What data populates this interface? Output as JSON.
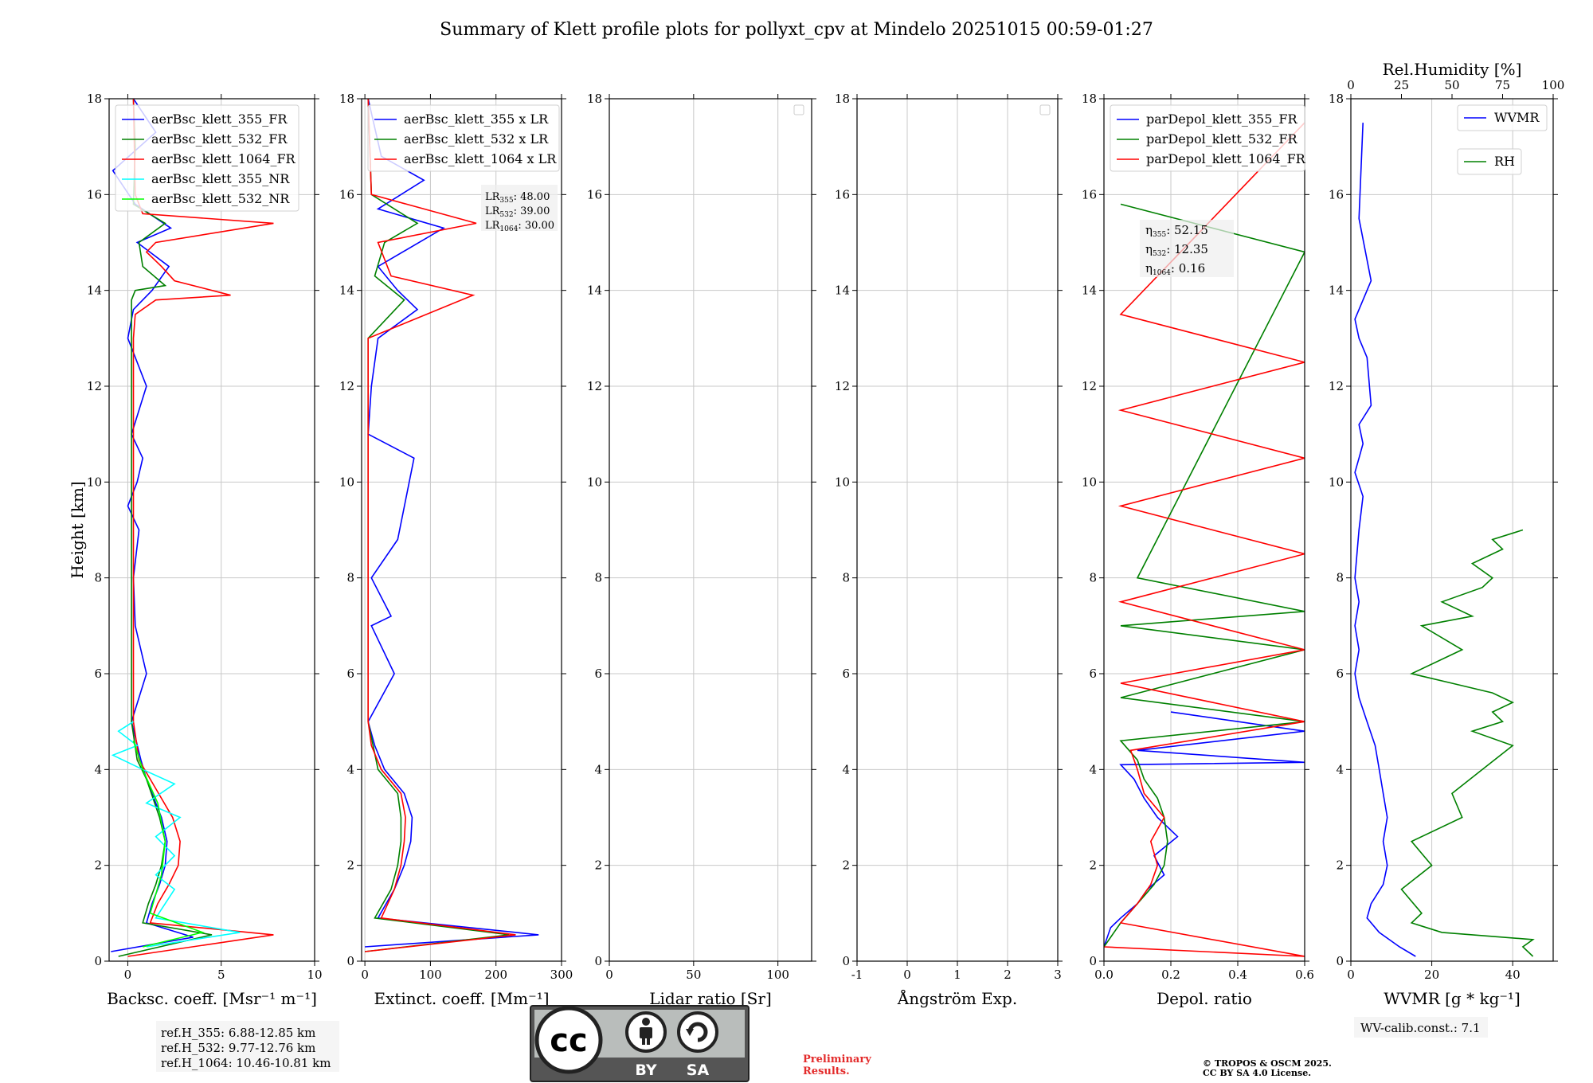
{
  "title": "Summary of Klett profile plots for pollyxt_cpv at Mindelo 20251015 00:59-01:27",
  "chart_data": [
    {
      "type": "line",
      "id": "bsc",
      "xlabel": "Backsc. coeff. [Msr⁻¹ m⁻¹]",
      "ylabel": "Height [km]",
      "xlim": [
        -1,
        10
      ],
      "xticks": [
        0,
        5,
        10
      ],
      "ylim": [
        0,
        18
      ],
      "yticks": [
        0,
        2,
        4,
        6,
        8,
        10,
        12,
        14,
        16,
        18
      ],
      "grid": true,
      "legend_position": "upper-left",
      "series": [
        {
          "name": "aerBsc_klett_355_FR",
          "color": "#0000ff",
          "x": [
            -0.9,
            3.5,
            1.0,
            1.3,
            1.7,
            2.0,
            2.1,
            1.8,
            1.0,
            0.7,
            0.2,
            1.0,
            0.4,
            0.3,
            0.6,
            0.0,
            0.5,
            0.8,
            0.2,
            1.0,
            0.0,
            0.3,
            1.3,
            2.2,
            0.5,
            2.3,
            0.4,
            -0.8,
            1.5,
            0.3
          ],
          "y": [
            0.2,
            0.5,
            0.8,
            1.2,
            1.6,
            2.0,
            2.5,
            3.0,
            3.8,
            4.2,
            5.0,
            6.0,
            7.0,
            8.0,
            9.0,
            9.5,
            10.0,
            10.5,
            11.0,
            12.0,
            13.0,
            13.6,
            14.0,
            14.5,
            15.0,
            15.3,
            15.8,
            16.5,
            17.3,
            18.0
          ]
        },
        {
          "name": "aerBsc_klett_532_FR",
          "color": "#008000",
          "x": [
            -0.5,
            4.5,
            0.8,
            1.1,
            1.5,
            1.8,
            2.0,
            1.7,
            1.0,
            0.5,
            0.2,
            0.2,
            0.2,
            0.2,
            0.2,
            0.2,
            0.2,
            0.2,
            0.2,
            0.2,
            0.2,
            0.4,
            2.0,
            0.8,
            0.6,
            2.0,
            0.3,
            0.4,
            0.3
          ],
          "y": [
            0.1,
            0.55,
            0.8,
            1.2,
            1.6,
            2.0,
            2.5,
            3.0,
            3.8,
            4.2,
            5.0,
            6.0,
            7.0,
            8.0,
            9.0,
            10.0,
            11.0,
            12.0,
            13.0,
            13.6,
            13.8,
            14.0,
            14.1,
            14.5,
            15.0,
            15.4,
            15.8,
            17.0,
            18.0
          ]
        },
        {
          "name": "aerBsc_klett_1064_FR",
          "color": "#ff0000",
          "x": [
            0.0,
            7.8,
            1.2,
            1.6,
            2.2,
            2.7,
            2.8,
            2.4,
            1.2,
            0.6,
            0.3,
            0.3,
            0.3,
            0.3,
            0.3,
            0.3,
            0.3,
            0.3,
            0.3,
            0.4,
            1.5,
            5.5,
            2.5,
            1.8,
            1.0,
            1.5,
            7.8,
            0.8,
            0.4,
            0.3
          ],
          "y": [
            0.1,
            0.55,
            0.8,
            1.2,
            1.6,
            2.0,
            2.5,
            3.0,
            3.8,
            4.2,
            5.0,
            6.0,
            7.0,
            8.0,
            9.0,
            10.0,
            11.0,
            12.0,
            13.0,
            13.5,
            13.8,
            13.9,
            14.2,
            14.5,
            14.8,
            15.0,
            15.4,
            15.6,
            16.0,
            18.0
          ]
        },
        {
          "name": "aerBsc_klett_355_NR",
          "color": "#00ffff",
          "x": [
            1.0,
            6.0,
            1.5,
            2.5,
            1.5,
            2.5,
            1.5,
            2.8,
            1.0,
            2.5,
            0.8,
            -0.8,
            0.5,
            -0.5,
            0.3
          ],
          "y": [
            0.3,
            0.6,
            0.9,
            1.5,
            1.8,
            2.2,
            2.6,
            3.0,
            3.3,
            3.7,
            4.0,
            4.3,
            4.5,
            4.8,
            5.0
          ]
        },
        {
          "name": "aerBsc_klett_532_NR",
          "color": "#00ff00",
          "x": [
            0.8,
            4.0,
            1.2,
            1.8,
            2.0,
            1.6,
            0.8,
            0.3
          ],
          "y": [
            0.3,
            0.6,
            1.0,
            1.8,
            2.5,
            3.3,
            4.0,
            4.6
          ]
        }
      ],
      "annotation": [
        "ref.H_355: 6.88-12.85 km",
        "ref.H_532: 9.77-12.76 km",
        "ref.H_1064: 10.46-10.81 km"
      ]
    },
    {
      "type": "line",
      "id": "ext",
      "xlabel": "Extinct. coeff. [Mm⁻¹]",
      "xlim": [
        -5,
        300
      ],
      "xticks": [
        0,
        100,
        200,
        300
      ],
      "ylim": [
        0,
        18
      ],
      "yticks": [
        0,
        2,
        4,
        6,
        8,
        10,
        12,
        14,
        16,
        18
      ],
      "grid": true,
      "legend_position": "upper-left",
      "series": [
        {
          "name": "aerBsc_klett_355 x LR",
          "color": "#0000ff",
          "x": [
            0,
            265,
            20,
            45,
            60,
            70,
            72,
            60,
            30,
            15,
            5,
            45,
            10,
            40,
            10,
            50,
            75,
            5,
            10,
            20,
            80,
            50,
            20,
            120,
            20,
            90,
            25,
            5
          ],
          "y": [
            0.3,
            0.55,
            0.9,
            1.5,
            2.0,
            2.5,
            3.0,
            3.5,
            4.0,
            4.5,
            5.0,
            6.0,
            7.0,
            7.2,
            8.0,
            8.8,
            10.5,
            11.0,
            12.0,
            13.0,
            13.6,
            14.0,
            14.5,
            15.3,
            15.7,
            16.3,
            16.8,
            18.0
          ]
        },
        {
          "name": "aerBsc_klett_532 x LR",
          "color": "#008000",
          "x": [
            0,
            220,
            15,
            40,
            50,
            55,
            55,
            50,
            20,
            5,
            5,
            5,
            5,
            5,
            5,
            5,
            5,
            60,
            15,
            30,
            80,
            10,
            5
          ],
          "y": [
            0.2,
            0.55,
            0.9,
            1.5,
            2.0,
            2.5,
            3.0,
            3.5,
            4.0,
            5.0,
            6.0,
            7.0,
            8.0,
            9.0,
            10.0,
            11.0,
            13.0,
            13.8,
            14.3,
            15.0,
            15.4,
            16.0,
            18.0
          ]
        },
        {
          "name": "aerBsc_klett_1064 x LR",
          "color": "#ff0000",
          "x": [
            0,
            230,
            25,
            45,
            55,
            60,
            62,
            55,
            25,
            10,
            5,
            5,
            5,
            5,
            5,
            5,
            5,
            5,
            165,
            40,
            20,
            170,
            10,
            5
          ],
          "y": [
            0.2,
            0.55,
            0.9,
            1.5,
            2.0,
            2.5,
            3.0,
            3.5,
            4.0,
            4.5,
            5.0,
            6.0,
            7.0,
            8.0,
            9.0,
            10.0,
            11.0,
            13.0,
            13.9,
            14.3,
            15.0,
            15.4,
            16.0,
            18.0
          ]
        }
      ],
      "annotation": [
        "LR355: 48.00",
        "LR532: 39.00",
        "LR1064: 30.00"
      ]
    },
    {
      "type": "line",
      "id": "lr",
      "xlabel": "Lidar ratio [Sr]",
      "xlim": [
        0,
        120
      ],
      "xticks": [
        0,
        50,
        100
      ],
      "ylim": [
        0,
        18
      ],
      "yticks": [
        0,
        2,
        4,
        6,
        8,
        10,
        12,
        14,
        16,
        18
      ],
      "grid": true,
      "legend_position": "upper-right",
      "series": []
    },
    {
      "type": "line",
      "id": "ae",
      "xlabel": "Ångström Exp.",
      "xlim": [
        -1,
        3
      ],
      "xticks": [
        -1,
        0,
        1,
        2,
        3
      ],
      "ylim": [
        0,
        18
      ],
      "yticks": [
        0,
        2,
        4,
        6,
        8,
        10,
        12,
        14,
        16,
        18
      ],
      "grid": true,
      "legend_position": "upper-right",
      "series": []
    },
    {
      "type": "line",
      "id": "depol",
      "xlabel": "Depol. ratio",
      "xlim": [
        0,
        0.6
      ],
      "xticks": [
        0.0,
        0.2,
        0.4,
        0.6
      ],
      "ylim": [
        0,
        18
      ],
      "yticks": [
        0,
        2,
        4,
        6,
        8,
        10,
        12,
        14,
        16,
        18
      ],
      "grid": true,
      "legend_position": "upper-left",
      "series": [
        {
          "name": "parDepol_klett_355_FR",
          "color": "#0000ff",
          "x": [
            0.0,
            0.02,
            0.05,
            0.1,
            0.13,
            0.18,
            0.15,
            0.22,
            0.16,
            0.12,
            0.09,
            0.05,
            0.6,
            0.1,
            0.6,
            0.2
          ],
          "y": [
            0.3,
            0.7,
            0.9,
            1.2,
            1.5,
            1.8,
            2.2,
            2.6,
            3.0,
            3.4,
            3.8,
            4.1,
            4.15,
            4.4,
            4.8,
            5.2
          ]
        },
        {
          "name": "parDepol_klett_532_FR",
          "color": "#008000",
          "x": [
            0.0,
            0.05,
            0.1,
            0.15,
            0.18,
            0.19,
            0.18,
            0.16,
            0.12,
            0.1,
            0.05,
            0.6,
            0.05,
            0.6,
            0.05,
            0.6,
            0.1,
            0.6,
            0.05
          ],
          "y": [
            0.3,
            0.8,
            1.2,
            1.6,
            2.0,
            2.5,
            3.0,
            3.4,
            3.8,
            4.2,
            4.6,
            5.0,
            5.5,
            6.5,
            7.0,
            7.3,
            8.0,
            14.8,
            15.8
          ]
        },
        {
          "name": "parDepol_klett_1064_FR",
          "color": "#ff0000",
          "x": [
            0.0,
            0.6,
            0.05,
            0.1,
            0.14,
            0.16,
            0.14,
            0.18,
            0.12,
            0.1,
            0.08,
            0.6,
            0.05,
            0.6,
            0.05,
            0.6,
            0.05,
            0.6,
            0.05,
            0.6,
            0.05,
            0.6
          ],
          "y": [
            0.3,
            0.1,
            0.8,
            1.2,
            1.6,
            2.0,
            2.5,
            3.0,
            3.5,
            4.0,
            4.4,
            5.0,
            5.8,
            6.5,
            7.5,
            8.5,
            9.5,
            10.5,
            11.5,
            12.5,
            13.5,
            17.5
          ]
        }
      ],
      "annotation": [
        "η355: 52.15",
        "η532: 12.35",
        "η1064: 0.16"
      ]
    },
    {
      "type": "line",
      "id": "wv",
      "xlabel": "WVMR [g * kg⁻¹]",
      "x2label": "Rel.Humidity [%]",
      "xlim": [
        0,
        50
      ],
      "xticks": [
        0,
        20,
        40
      ],
      "x2lim": [
        0,
        100
      ],
      "x2ticks": [
        0,
        25,
        50,
        75,
        100
      ],
      "ylim": [
        0,
        18
      ],
      "yticks": [
        0,
        2,
        4,
        6,
        8,
        10,
        12,
        14,
        16,
        18
      ],
      "grid": true,
      "legend_position": "upper-right",
      "series": [
        {
          "name": "WVMR",
          "color": "#0000ff",
          "axis": "x",
          "x": [
            16,
            12,
            7,
            4,
            5,
            8,
            9,
            8,
            9,
            8,
            7,
            6,
            4,
            2,
            1,
            2,
            1,
            2,
            1,
            2,
            3,
            1,
            2,
            3,
            2,
            5,
            4,
            2,
            1,
            5,
            2,
            3
          ],
          "y": [
            0.1,
            0.3,
            0.6,
            0.9,
            1.2,
            1.6,
            2.0,
            2.5,
            3.0,
            3.5,
            4.0,
            4.5,
            5.0,
            5.5,
            6.0,
            6.5,
            7.0,
            7.5,
            8.0,
            9.0,
            9.7,
            10.2,
            10.5,
            10.8,
            11.2,
            11.6,
            12.6,
            13.0,
            13.4,
            14.2,
            15.5,
            17.5
          ]
        },
        {
          "name": "RH",
          "color": "#008000",
          "axis": "x2",
          "x": [
            90,
            85,
            90,
            45,
            30,
            35,
            25,
            40,
            30,
            55,
            50,
            65,
            80,
            60,
            75,
            70,
            80,
            70,
            50,
            30,
            55,
            35,
            60,
            45,
            65,
            70,
            60,
            75,
            70,
            85
          ],
          "y": [
            0.1,
            0.3,
            0.45,
            0.6,
            0.8,
            1.0,
            1.5,
            2.0,
            2.5,
            3.0,
            3.5,
            4.0,
            4.5,
            4.8,
            5.0,
            5.2,
            5.4,
            5.6,
            5.8,
            6.0,
            6.5,
            7.0,
            7.2,
            7.5,
            7.8,
            8.0,
            8.3,
            8.6,
            8.8,
            9.0
          ]
        }
      ],
      "annotation": [
        "WV-calib.const.: 7.1"
      ]
    }
  ],
  "license_badge": {
    "top": "cc",
    "bottom_left": "BY",
    "bottom_right": "SA"
  },
  "footer": {
    "preliminary_line1": "Preliminary",
    "preliminary_line2": "Results.",
    "copyright_line1": "© TROPOS & OSCM 2025.",
    "copyright_line2": "CC BY SA 4.0 License."
  }
}
